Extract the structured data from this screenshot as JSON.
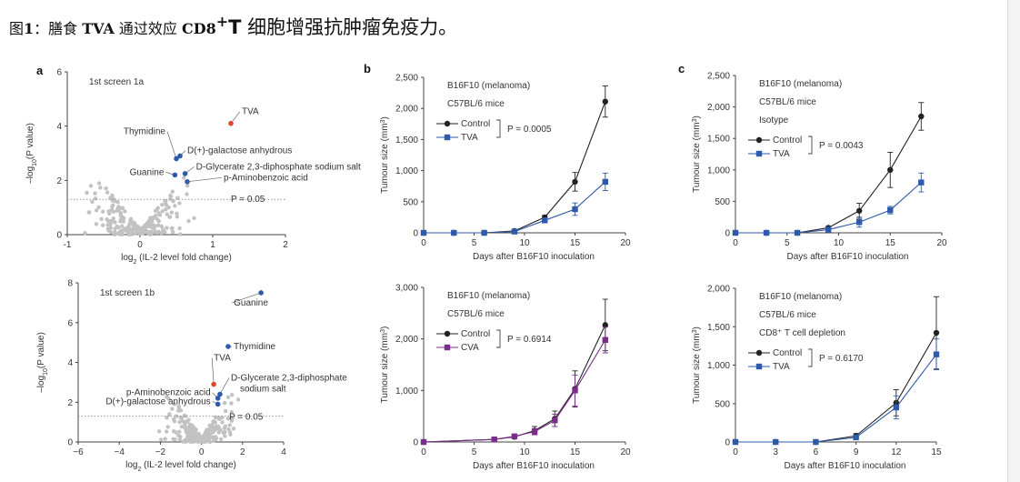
{
  "caption": {
    "label": "图",
    "number": "1",
    "colon": "：",
    "pre": "膳食 ",
    "tva": "TVA",
    "mid": " 通过效应 ",
    "cd8": "CD8",
    "sup": "+",
    "t": "T",
    "rest": " 细胞增强抗肿瘤免疫力。"
  },
  "colors": {
    "control": "#222222",
    "tva": "#2e5aa8",
    "cva": "#7b2d8b",
    "highlight_red": "#e0442c",
    "highlight_blue": "#2e5aa8",
    "bg_points": "#c2c2c2"
  },
  "chart_data": [
    {
      "id": "a1",
      "type": "scatter",
      "panel_letter": "a",
      "title": "1st screen 1a",
      "xlabel_pre": "log",
      "xlabel_sub": "2",
      "xlabel_post": " (IL-2 level fold change)",
      "ylabel_pre": "–log",
      "ylabel_sub": "10",
      "ylabel_post": "(P value)",
      "xlim": [
        -1,
        2
      ],
      "ylim": [
        0,
        6
      ],
      "xticks": [
        "-1",
        "0",
        "1",
        "2"
      ],
      "yticks": [
        "0",
        "2",
        "4",
        "6"
      ],
      "threshold": {
        "y": 1.3,
        "label": "P = 0.05"
      },
      "highlighted": [
        {
          "label": "TVA",
          "x": 1.25,
          "y": 4.1,
          "color": "red"
        },
        {
          "label": "Thymidine",
          "x": 0.5,
          "y": 2.8,
          "color": "blue"
        },
        {
          "label": "D(+)-galactose anhydrous",
          "x": 0.55,
          "y": 2.9,
          "color": "blue"
        },
        {
          "label": "Guanine",
          "x": 0.48,
          "y": 2.2,
          "color": "blue"
        },
        {
          "label": "D-Glycerate 2,3-diphosphate sodium salt",
          "x": 0.62,
          "y": 2.25,
          "color": "blue"
        },
        {
          "label": "p-Aminobenzoic acid",
          "x": 0.65,
          "y": 1.95,
          "color": "blue"
        }
      ]
    },
    {
      "id": "a2",
      "type": "scatter",
      "title": "1st screen 1b",
      "xlabel_pre": "log",
      "xlabel_sub": "2",
      "xlabel_post": " (IL-2 level fold change)",
      "ylabel_pre": "–log",
      "ylabel_sub": "10",
      "ylabel_post": "(P value)",
      "xlim": [
        -6,
        4
      ],
      "ylim": [
        0,
        8
      ],
      "xticks": [
        "−6",
        "−4",
        "−2",
        "0",
        "2",
        "4"
      ],
      "yticks": [
        "0",
        "2",
        "4",
        "6",
        "8"
      ],
      "threshold": {
        "y": 1.3,
        "label": "P = 0.05"
      },
      "highlighted": [
        {
          "label": "Guanine",
          "x": 2.9,
          "y": 7.5,
          "color": "blue"
        },
        {
          "label": "Thymidine",
          "x": 1.3,
          "y": 4.8,
          "color": "blue"
        },
        {
          "label": "TVA",
          "x": 0.6,
          "y": 2.9,
          "color": "red"
        },
        {
          "label": "D-Glycerate 2,3-diphosphate",
          "label2": "sodium salt",
          "x": 0.9,
          "y": 2.4,
          "color": "blue"
        },
        {
          "label": "p-Aminobenzoic acid",
          "x": 0.8,
          "y": 2.2,
          "color": "blue"
        },
        {
          "label": "D(+)-galactose anhydrous",
          "x": 0.8,
          "y": 1.9,
          "color": "blue"
        }
      ]
    },
    {
      "id": "b1",
      "type": "line",
      "panel_letter": "b",
      "annotations": [
        "B16F10 (melanoma)",
        "C57BL/6 mice"
      ],
      "xlabel": "Days after B16F10 inoculation",
      "ylabel_pre": "Tumour size (mm",
      "ylabel_sup": "3",
      "ylabel_post": ")",
      "xlim": [
        0,
        20
      ],
      "ylim": [
        0,
        2500
      ],
      "xticks": [
        "0",
        "5",
        "10",
        "15",
        "20"
      ],
      "yticks": [
        "0",
        "500",
        "1,000",
        "1,500",
        "2,000",
        "2,500"
      ],
      "p_value": "P = 0.0005",
      "series": [
        {
          "name": "Control",
          "marker": "circle",
          "color": "control",
          "x": [
            0,
            3,
            6,
            9,
            12,
            15,
            18
          ],
          "y": [
            0,
            0,
            0,
            30,
            250,
            820,
            2110
          ],
          "err": [
            0,
            0,
            0,
            10,
            30,
            150,
            250
          ]
        },
        {
          "name": "TVA",
          "marker": "square",
          "color": "tva",
          "x": [
            0,
            3,
            6,
            9,
            12,
            15,
            18
          ],
          "y": [
            0,
            0,
            0,
            20,
            200,
            380,
            820
          ],
          "err": [
            0,
            0,
            0,
            10,
            30,
            100,
            140
          ]
        }
      ]
    },
    {
      "id": "b2",
      "type": "line",
      "annotations": [
        "B16F10 (melanoma)",
        "C57BL/6 mice"
      ],
      "xlabel": "Days after B16F10 inoculation",
      "ylabel_pre": "Tumour size (mm",
      "ylabel_sup": "3",
      "ylabel_post": ")",
      "xlim": [
        0,
        20
      ],
      "ylim": [
        0,
        3000
      ],
      "xticks": [
        "0",
        "5",
        "10",
        "15",
        "20"
      ],
      "yticks": [
        "0",
        "1,000",
        "2,000",
        "3,000"
      ],
      "p_value": "P = 0.6914",
      "series": [
        {
          "name": "Control",
          "marker": "circle",
          "color": "control",
          "x": [
            0,
            7,
            9,
            11,
            13,
            15,
            18
          ],
          "y": [
            0,
            50,
            100,
            220,
            450,
            1030,
            2270
          ],
          "err": [
            0,
            20,
            30,
            80,
            150,
            350,
            500
          ]
        },
        {
          "name": "CVA",
          "marker": "square",
          "color": "cva",
          "x": [
            0,
            7,
            9,
            11,
            13,
            15,
            18
          ],
          "y": [
            0,
            50,
            110,
            200,
            420,
            1000,
            1980
          ],
          "err": [
            0,
            20,
            30,
            60,
            120,
            300,
            250
          ]
        }
      ]
    },
    {
      "id": "c1",
      "type": "line",
      "panel_letter": "c",
      "annotations": [
        "B16F10 (melanoma)",
        "C57BL/6 mice",
        "Isotype"
      ],
      "xlabel": "Days after B16F10 inoculation",
      "ylabel_pre": "Tumour size (mm",
      "ylabel_sup": "3",
      "ylabel_post": ")",
      "xlim": [
        0,
        20
      ],
      "ylim": [
        0,
        2500
      ],
      "xticks": [
        "0",
        "5",
        "10",
        "15",
        "20"
      ],
      "yticks": [
        "0",
        "500",
        "1,000",
        "1,500",
        "2,000",
        "2,500"
      ],
      "p_value": "P = 0.0043",
      "series": [
        {
          "name": "Control",
          "marker": "circle",
          "color": "control",
          "x": [
            0,
            3,
            6,
            9,
            12,
            15,
            18
          ],
          "y": [
            0,
            0,
            0,
            80,
            350,
            1000,
            1850
          ],
          "err": [
            0,
            0,
            0,
            20,
            120,
            280,
            220
          ]
        },
        {
          "name": "TVA",
          "marker": "square",
          "color": "tva",
          "x": [
            0,
            3,
            6,
            9,
            12,
            15,
            18
          ],
          "y": [
            0,
            0,
            0,
            50,
            170,
            360,
            800
          ],
          "err": [
            0,
            0,
            0,
            15,
            80,
            60,
            150
          ]
        }
      ]
    },
    {
      "id": "c2",
      "type": "line",
      "annotations": [
        "B16F10 (melanoma)",
        "C57BL/6 mice",
        "CD8⁺ T cell depletion"
      ],
      "xlabel": "Days after B16F10 inoculation",
      "ylabel_pre": "Tumour size (mm",
      "ylabel_sup": "3",
      "ylabel_post": ")",
      "xlim": [
        0,
        15
      ],
      "ylim": [
        0,
        2000
      ],
      "xticks": [
        "0",
        "3",
        "6",
        "9",
        "12",
        "15"
      ],
      "yticks": [
        "0",
        "500",
        "1,000",
        "1,500",
        "2,000"
      ],
      "p_value": "P = 0.6170",
      "series": [
        {
          "name": "Control",
          "marker": "circle",
          "color": "control",
          "x": [
            0,
            3,
            6,
            9,
            12,
            15
          ],
          "y": [
            0,
            0,
            0,
            80,
            510,
            1420
          ],
          "err": [
            0,
            0,
            0,
            30,
            170,
            470
          ]
        },
        {
          "name": "TVA",
          "marker": "square",
          "color": "tva",
          "x": [
            0,
            3,
            6,
            9,
            12,
            15
          ],
          "y": [
            0,
            0,
            0,
            60,
            450,
            1140
          ],
          "err": [
            0,
            0,
            0,
            20,
            150,
            200
          ]
        }
      ]
    }
  ]
}
